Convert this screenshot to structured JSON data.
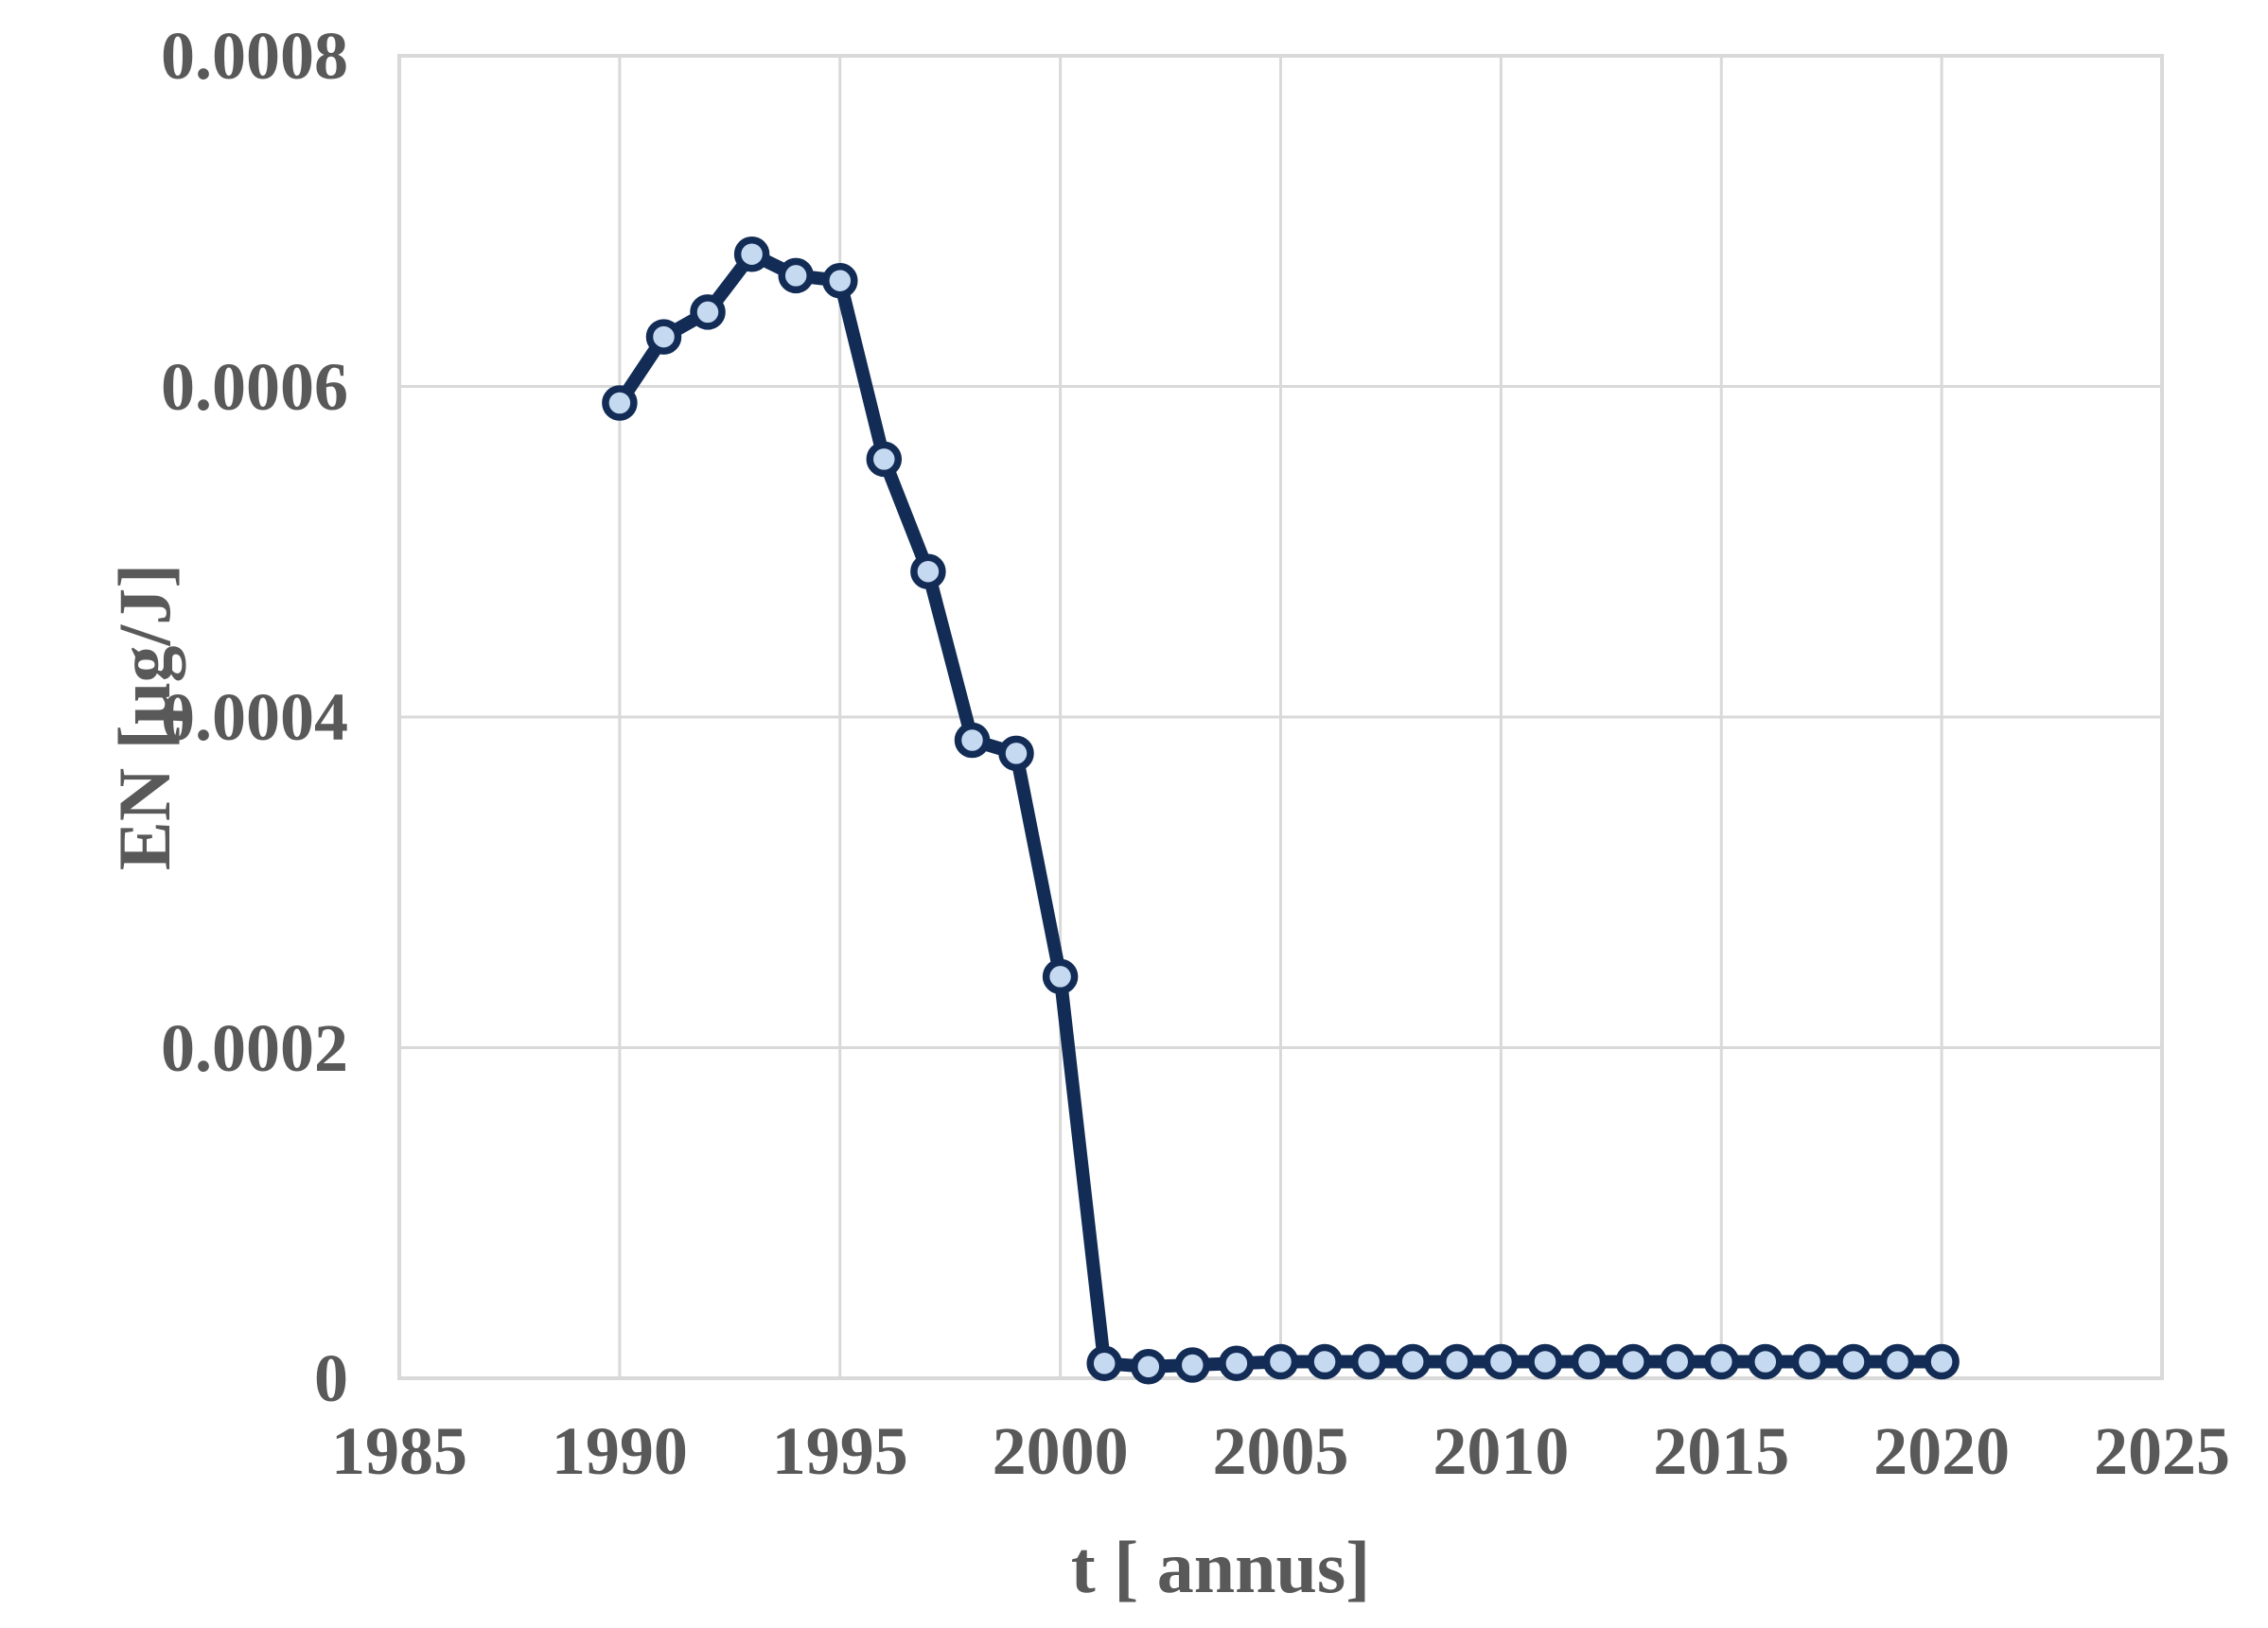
{
  "figure": {
    "background": "#ffffff"
  },
  "chart_data": {
    "type": "line",
    "title": "",
    "xlabel": "t [ annus]",
    "ylabel": "EN [µg/J]",
    "x": [
      1990,
      1991,
      1992,
      1993,
      1994,
      1995,
      1996,
      1997,
      1998,
      1999,
      2000,
      2001,
      2002,
      2003,
      2004,
      2005,
      2006,
      2007,
      2008,
      2009,
      2010,
      2011,
      2012,
      2013,
      2014,
      2015,
      2016,
      2017,
      2018,
      2019,
      2020
    ],
    "values": [
      0.00059,
      0.00063,
      0.000645,
      0.00068,
      0.000667,
      0.000664,
      0.000556,
      0.000488,
      0.000386,
      0.000378,
      0.000243,
      9e-06,
      7e-06,
      8e-06,
      9e-06,
      1e-05,
      1e-05,
      1e-05,
      1e-05,
      1e-05,
      1e-05,
      1e-05,
      1e-05,
      1e-05,
      1e-05,
      1e-05,
      1e-05,
      1e-05,
      1e-05,
      1e-05,
      1e-05
    ],
    "series_name": "EN",
    "xlim": [
      1985,
      2025
    ],
    "ylim": [
      0,
      0.0008
    ],
    "x_ticks": [
      "1985",
      "1990",
      "1995",
      "2000",
      "2005",
      "2010",
      "2015",
      "2020",
      "2025"
    ],
    "x_tick_values": [
      1985,
      1990,
      1995,
      2000,
      2005,
      2010,
      2015,
      2020,
      2025
    ],
    "y_ticks": [
      "0",
      "0.0002",
      "0.0004",
      "0.0006",
      "0.0008"
    ],
    "y_tick_values": [
      0,
      0.0002,
      0.0004,
      0.0006,
      0.0008
    ],
    "grid": true,
    "legend": false,
    "marker": "circle",
    "colors": {
      "line": "#122c56",
      "marker_fill": "#c5d9f1",
      "grid": "#d9d9d9",
      "plot_border": "#d9d9d9",
      "text": "#595959",
      "background": "#ffffff"
    }
  }
}
